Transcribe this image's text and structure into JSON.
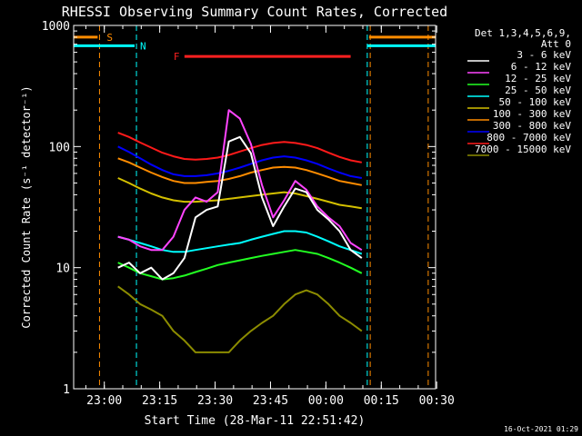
{
  "chart_data": {
    "type": "line",
    "title": "RHESSI Observing Summary Count Rates, Corrected",
    "xlabel": "Start Time (28-Mar-11 22:51:42)",
    "ylabel": "Corrected Count Rate (s⁻¹ detector⁻¹)",
    "ylog": true,
    "ylim": [
      1,
      1000
    ],
    "xlim_minutes": [
      0,
      98
    ],
    "x_ticks": [
      {
        "label": "23:00",
        "min": 8.3
      },
      {
        "label": "23:15",
        "min": 23.3
      },
      {
        "label": "23:30",
        "min": 38.3
      },
      {
        "label": "23:45",
        "min": 53.3
      },
      {
        "label": "00:00",
        "min": 68.3
      },
      {
        "label": "00:15",
        "min": 83.3
      },
      {
        "label": "00:30",
        "min": 98.3
      }
    ],
    "y_ticks": [
      {
        "label": "1",
        "value": 1
      },
      {
        "label": "10",
        "value": 10
      },
      {
        "label": "100",
        "value": 100
      },
      {
        "label": "1000",
        "value": 1000
      }
    ],
    "legend_header": [
      "Det 1,3,4,5,6,9,",
      "Att 0"
    ],
    "legend_position": "right",
    "grid": false,
    "annotations": {
      "vlines": [
        {
          "min": 7.0,
          "color": "#ff8c00"
        },
        {
          "min": 17.0,
          "color": "#00ffff"
        },
        {
          "min": 79.5,
          "color": "#00ffff"
        },
        {
          "min": 80.3,
          "color": "#ff8c00"
        },
        {
          "min": 96.0,
          "color": "#ff8c00"
        }
      ],
      "bars": [
        {
          "label": "S",
          "label_color": "#ff8c00",
          "color": "#ff8c00",
          "y": 800,
          "segments": [
            [
              0,
              6.5
            ],
            [
              80,
              98
            ]
          ]
        },
        {
          "label": "N",
          "label_color": "#00ffff",
          "color": "#00ffff",
          "y": 680,
          "segments": [
            [
              0,
              16.5
            ],
            [
              79.5,
              98
            ]
          ]
        },
        {
          "label": "F",
          "label_color": "#ff2020",
          "color": "#ff2020",
          "y": 555,
          "segments": [
            [
              30,
              75
            ]
          ]
        }
      ]
    },
    "x": [
      12,
      15,
      18,
      21,
      24,
      27,
      30,
      33,
      36,
      39,
      42,
      45,
      48,
      51,
      54,
      57,
      60,
      63,
      66,
      69,
      72,
      75,
      78
    ],
    "series": [
      {
        "name": "3 - 6 keV",
        "color": "#ffffff",
        "values": [
          10,
          11,
          9,
          10,
          8,
          9,
          12,
          26,
          30,
          32,
          110,
          120,
          88,
          38,
          22,
          32,
          45,
          42,
          30,
          25,
          20,
          14,
          12
        ]
      },
      {
        "name": "6 - 12 keV",
        "color": "#ff44ff",
        "values": [
          18,
          17,
          15,
          14,
          14,
          18,
          30,
          38,
          35,
          42,
          200,
          170,
          105,
          48,
          26,
          36,
          52,
          44,
          32,
          26,
          22,
          16,
          14
        ]
      },
      {
        "name": "12 - 25 keV",
        "color": "#22ff22",
        "values": [
          11,
          10,
          9,
          8.5,
          8,
          8.2,
          8.6,
          9.2,
          9.8,
          10.5,
          11,
          11.5,
          12,
          12.5,
          13,
          13.5,
          14,
          13.5,
          13,
          12,
          11,
          10,
          9
        ]
      },
      {
        "name": "25 - 50 keV",
        "color": "#00ffff",
        "values": [
          18,
          17,
          16,
          15,
          14,
          13.5,
          13.5,
          14,
          14.5,
          15,
          15.5,
          16,
          17,
          18,
          19,
          20,
          20,
          19.5,
          18,
          16.5,
          15,
          14,
          13
        ]
      },
      {
        "name": "50 - 100 keV",
        "color": "#d4c000",
        "values": [
          55,
          50,
          45,
          41,
          38,
          36,
          35,
          35,
          35.5,
          36,
          37,
          38,
          39,
          40,
          41,
          42,
          41,
          39,
          37,
          35,
          33,
          32,
          31
        ]
      },
      {
        "name": "100 - 300 keV",
        "color": "#ff8c00",
        "values": [
          80,
          74,
          67,
          61,
          56,
          52,
          50,
          50,
          51,
          52,
          54,
          57,
          61,
          64,
          67,
          68,
          67,
          64,
          60,
          56,
          52,
          50,
          48
        ]
      },
      {
        "name": "300 - 800 keV",
        "color": "#0000ff",
        "values": [
          100,
          90,
          80,
          71,
          64,
          59,
          57,
          57,
          58,
          60,
          63,
          67,
          72,
          77,
          81,
          83,
          81,
          77,
          72,
          66,
          61,
          57,
          55
        ]
      },
      {
        "name": "800 - 7000 keV",
        "color": "#ff1a1a",
        "values": [
          130,
          120,
          108,
          98,
          89,
          83,
          79,
          78,
          79,
          81,
          85,
          91,
          97,
          103,
          107,
          109,
          107,
          103,
          97,
          89,
          82,
          77,
          74
        ]
      },
      {
        "name": "7000 - 15000 keV",
        "color": "#8c8c00",
        "values": [
          7,
          6,
          5,
          4.5,
          4,
          3,
          2.5,
          2,
          2,
          2,
          2,
          2.5,
          3,
          3.5,
          4,
          5,
          6,
          6.5,
          6,
          5,
          4,
          3.5,
          3
        ]
      }
    ],
    "timestamp": "16-Oct-2021 01:29"
  }
}
